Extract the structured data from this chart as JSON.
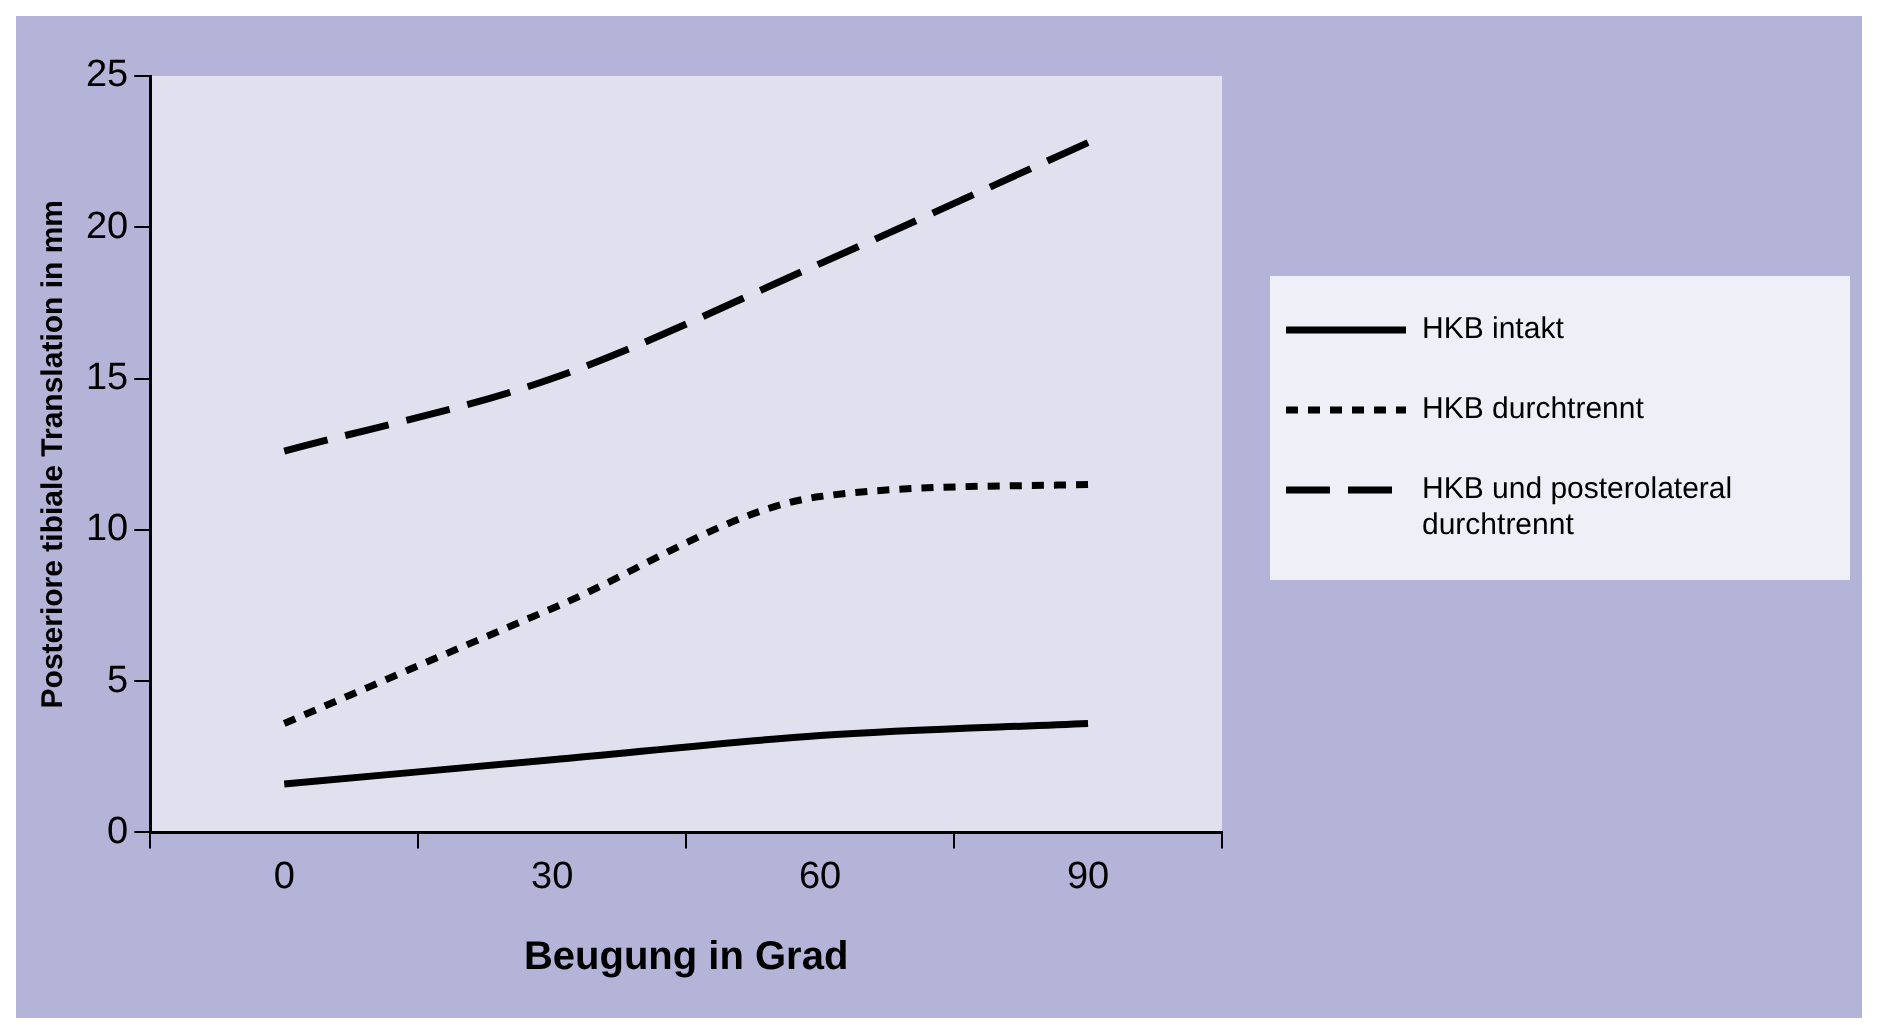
{
  "chart_data": {
    "type": "line",
    "xlabel": "Beugung in Grad",
    "ylabel": "Posteriore tibiale Translation in mm",
    "categories": [
      "0",
      "30",
      "60",
      "90"
    ],
    "series": [
      {
        "name": "HKB intakt",
        "color": "#000000",
        "line_style": "solid",
        "values": [
          1.6,
          2.4,
          3.2,
          3.6
        ]
      },
      {
        "name": "HKB durchtrennt",
        "color": "#000000",
        "line_style": "dotted",
        "values": [
          3.6,
          7.4,
          11.1,
          11.5
        ]
      },
      {
        "name": "HKB und posterolateral durchtrennt",
        "color": "#000000",
        "line_style": "dashed",
        "values": [
          12.6,
          15.0,
          18.8,
          22.8
        ]
      }
    ],
    "ylim": [
      0,
      25
    ],
    "yticks": [
      0,
      5,
      10,
      15,
      20,
      25
    ],
    "grid": false,
    "legend": "right",
    "marker": "none"
  }
}
